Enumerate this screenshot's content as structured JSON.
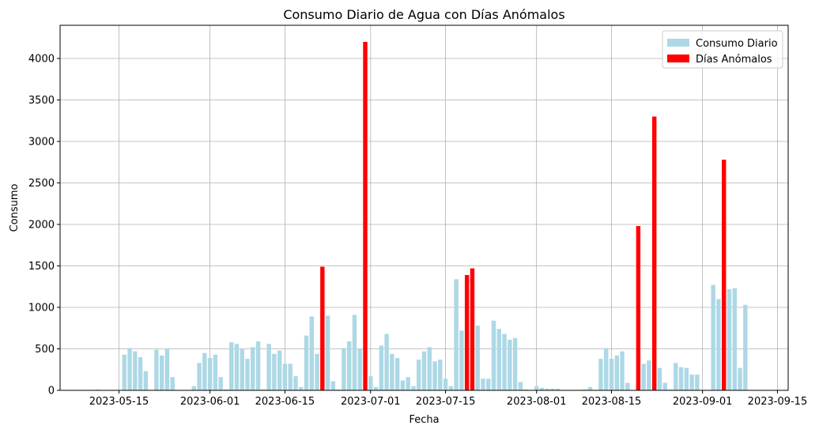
{
  "chart_data": {
    "type": "bar",
    "title": "Consumo Diario de Agua con Días Anómalos",
    "xlabel": "Fecha",
    "ylabel": "Consumo",
    "x_range": [
      "2023-05-04",
      "2023-09-17"
    ],
    "ylim": [
      0,
      4400
    ],
    "yticks": [
      0,
      500,
      1000,
      1500,
      2000,
      2500,
      3000,
      3500,
      4000
    ],
    "xticks": [
      "2023-05-15",
      "2023-06-01",
      "2023-06-15",
      "2023-07-01",
      "2023-07-15",
      "2023-08-01",
      "2023-08-15",
      "2023-09-01",
      "2023-09-15"
    ],
    "grid": true,
    "legend_position": "top-right",
    "colors": {
      "normal": "#add8e6",
      "anomaly": "#ff0000"
    },
    "series": [
      {
        "name": "Consumo Diario",
        "color": "#add8e6",
        "x": [
          "2023-05-11",
          "2023-05-16",
          "2023-05-17",
          "2023-05-18",
          "2023-05-19",
          "2023-05-20",
          "2023-05-22",
          "2023-05-23",
          "2023-05-24",
          "2023-05-25",
          "2023-05-29",
          "2023-05-30",
          "2023-05-31",
          "2023-06-01",
          "2023-06-02",
          "2023-06-03",
          "2023-06-04",
          "2023-06-05",
          "2023-06-06",
          "2023-06-07",
          "2023-06-08",
          "2023-06-09",
          "2023-06-10",
          "2023-06-11",
          "2023-06-12",
          "2023-06-13",
          "2023-06-14",
          "2023-06-15",
          "2023-06-16",
          "2023-06-17",
          "2023-06-18",
          "2023-06-19",
          "2023-06-20",
          "2023-06-21",
          "2023-06-23",
          "2023-06-24",
          "2023-06-25",
          "2023-06-26",
          "2023-06-27",
          "2023-06-28",
          "2023-06-29",
          "2023-07-01",
          "2023-07-02",
          "2023-07-03",
          "2023-07-04",
          "2023-07-05",
          "2023-07-06",
          "2023-07-07",
          "2023-07-08",
          "2023-07-09",
          "2023-07-10",
          "2023-07-11",
          "2023-07-12",
          "2023-07-13",
          "2023-07-14",
          "2023-07-15",
          "2023-07-16",
          "2023-07-17",
          "2023-07-18",
          "2023-07-21",
          "2023-07-22",
          "2023-07-23",
          "2023-07-24",
          "2023-07-25",
          "2023-07-26",
          "2023-07-27",
          "2023-07-28",
          "2023-07-29",
          "2023-07-30",
          "2023-08-01",
          "2023-08-02",
          "2023-08-03",
          "2023-08-04",
          "2023-08-05",
          "2023-08-10",
          "2023-08-11",
          "2023-08-13",
          "2023-08-14",
          "2023-08-15",
          "2023-08-16",
          "2023-08-17",
          "2023-08-18",
          "2023-08-21",
          "2023-08-22",
          "2023-08-24",
          "2023-08-25",
          "2023-08-26",
          "2023-08-27",
          "2023-08-28",
          "2023-08-29",
          "2023-08-30",
          "2023-08-31",
          "2023-09-03",
          "2023-09-04",
          "2023-09-06",
          "2023-09-07",
          "2023-09-08",
          "2023-09-09"
        ],
        "values": [
          10,
          430,
          510,
          470,
          400,
          230,
          490,
          420,
          500,
          160,
          50,
          330,
          450,
          390,
          430,
          160,
          10,
          580,
          560,
          500,
          380,
          520,
          590,
          10,
          560,
          440,
          480,
          320,
          320,
          170,
          40,
          660,
          890,
          440,
          900,
          110,
          10,
          510,
          590,
          910,
          500,
          170,
          40,
          540,
          680,
          440,
          390,
          120,
          160,
          50,
          370,
          470,
          520,
          350,
          370,
          140,
          50,
          1340,
          720,
          780,
          140,
          140,
          840,
          740,
          680,
          610,
          630,
          100,
          10,
          50,
          30,
          20,
          20,
          20,
          10,
          40,
          380,
          510,
          380,
          420,
          470,
          90,
          320,
          360,
          270,
          90,
          10,
          330,
          280,
          270,
          190,
          190,
          1270,
          1100,
          1220,
          1230,
          270,
          1030
        ]
      },
      {
        "name": "Días Anómalos",
        "color": "#ff0000",
        "x": [
          "2023-06-22",
          "2023-06-30",
          "2023-07-19",
          "2023-07-20",
          "2023-08-20",
          "2023-08-23",
          "2023-09-05"
        ],
        "values": [
          1490,
          4200,
          1390,
          1470,
          1980,
          3300,
          2780
        ]
      }
    ]
  }
}
